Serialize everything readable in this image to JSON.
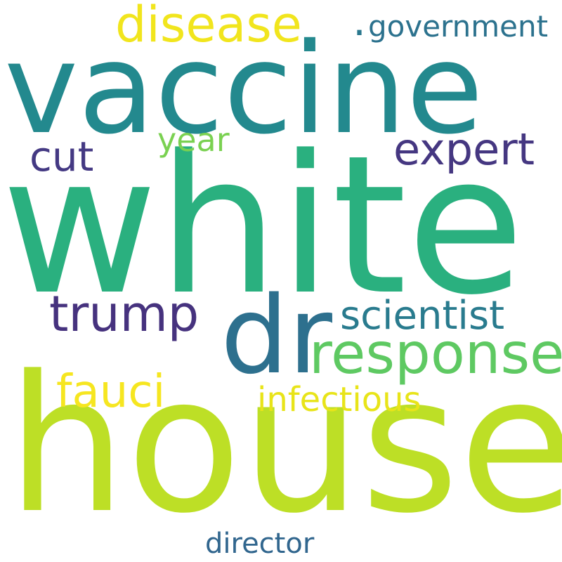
{
  "background": "#ffffff",
  "words": [
    {
      "id": "white",
      "text": "white",
      "color": "#2ab07f"
    },
    {
      "id": "house",
      "text": "house",
      "color": "#bddf26"
    },
    {
      "id": "vaccine",
      "text": "vaccine",
      "color": "#23898e"
    },
    {
      "id": "dr",
      "text": "dr",
      "color": "#2d708e"
    },
    {
      "id": "disease",
      "text": "disease",
      "color": "#f1e51d"
    },
    {
      "id": "expert",
      "text": "expert",
      "color": "#453781"
    },
    {
      "id": "response",
      "text": "response",
      "color": "#5ec962"
    },
    {
      "id": "trump",
      "text": "trump",
      "color": "#46327e"
    },
    {
      "id": "scientist",
      "text": "scientist",
      "color": "#297b8e"
    },
    {
      "id": "fauci",
      "text": "fauci",
      "color": "#f6e620"
    },
    {
      "id": "infectious",
      "text": "infectious",
      "color": "#e8e419"
    },
    {
      "id": "cut",
      "text": "cut",
      "color": "#443983"
    },
    {
      "id": "year",
      "text": "year",
      "color": "#7ad151"
    },
    {
      "id": "government",
      "text": "government",
      "color": "#2c728e"
    },
    {
      "id": "director",
      "text": "director",
      "color": "#31668e"
    },
    {
      "id": "dot",
      "text": ".",
      "color": "#2a788e"
    }
  ]
}
